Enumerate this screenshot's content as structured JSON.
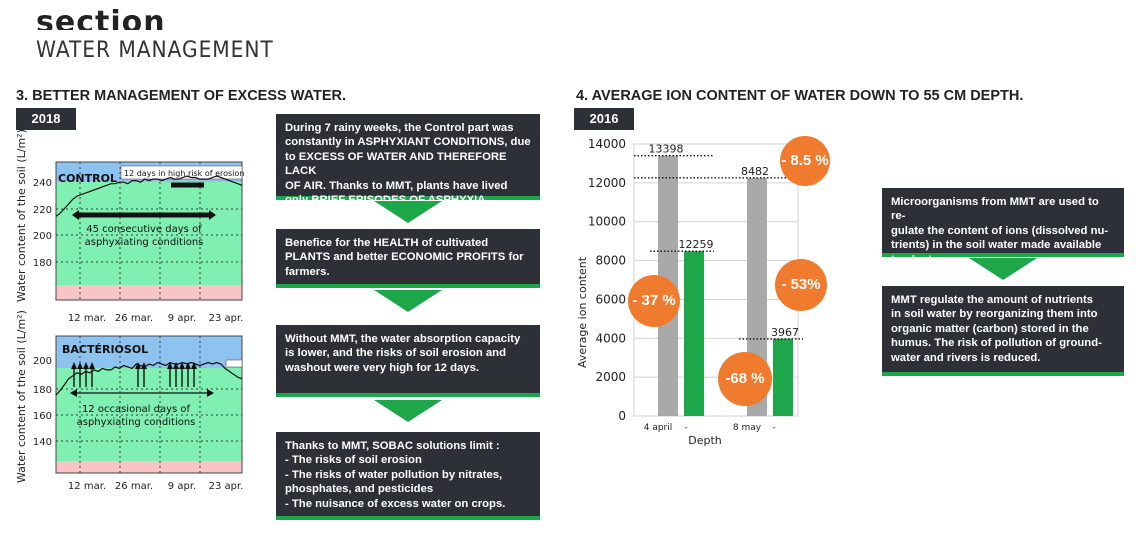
{
  "header": {
    "section_word": "section",
    "section_title": "WATER MANAGEMENT"
  },
  "left_panel": {
    "heading": "3. BETTER MANAGEMENT OF EXCESS WATER.",
    "year": "2018",
    "ylabel": "Water content of the soil (L/m²)",
    "x_ticks": [
      "12 mar.",
      "26 mar.",
      "9 apr.",
      "23 apr."
    ],
    "control": {
      "label": "CONTROL",
      "erosion_note": "12 days in high risk of erosion",
      "annotation_line1": "45 consecutive days of",
      "annotation_line2": "asphyxiating conditions",
      "y_ticks": [
        "240",
        "220",
        "200",
        "180"
      ]
    },
    "bacteriosol": {
      "label": "BACTÉRIOSOL",
      "annotation_line1": "12 occasional days of",
      "annotation_line2": "asphyxiating conditions",
      "y_ticks": [
        "200",
        "180",
        "160",
        "140"
      ]
    }
  },
  "middle_boxes": [
    {
      "lines": [
        "During 7 rainy weeks, the Control part was",
        "constantly in ASPHYXIANT CONDITIONS, due",
        "to EXCESS OF WATER AND THEREFORE LACK",
        "OF AIR. Thanks to MMT, plants have lived",
        "only BRIEF EPISODES OF ASPHYXIA."
      ]
    },
    {
      "lines": [
        "Benefice for the HEALTH of cultivated",
        "PLANTS and better ECONOMIC PROFITS for",
        "farmers."
      ]
    },
    {
      "lines": [
        "Without MMT, the water absorption capacity",
        "is lower, and the risks of soil erosion and",
        "washout were very high for 12 days."
      ]
    },
    {
      "lines": [
        "Thanks to MMT, SOBAC solutions limit :",
        "- The risks of soil erosion",
        "- The risks of water pollution by nitrates,",
        "phosphates, and pesticides",
        "- The nuisance of excess water on crops."
      ]
    }
  ],
  "right_panel": {
    "heading": "4. AVERAGE ION CONTENT OF WATER DOWN TO 55 CM DEPTH.",
    "year": "2016"
  },
  "right_boxes": [
    {
      "lines": [
        "Microorganisms from MMT are used to re-",
        "gulate the content of ions (dissolved nu-",
        "trients) in the soil water made available",
        "to plants."
      ]
    },
    {
      "lines": [
        "MMT regulate the amount of nutrients",
        "in soil water by reorganizing them into",
        "organic matter (carbon) stored in the",
        "humus. The risk of pollution of ground-",
        "water and rivers is reduced."
      ]
    }
  ],
  "badges": {
    "b1": "- 8.5 %",
    "b2": "- 37 %",
    "b3": "- 53%",
    "b4": "-68 %"
  },
  "chart_data": [
    {
      "type": "line",
      "title": "CONTROL",
      "ylabel": "Water content of the soil (L/m²)",
      "x_ticks": [
        "12 mar.",
        "26 mar.",
        "9 apr.",
        "23 apr."
      ],
      "y_ticks": [
        180,
        200,
        220,
        240
      ],
      "ylim": [
        165,
        254
      ],
      "series": [
        {
          "values": [
            219,
            221,
            224,
            227,
            230,
            232,
            233,
            234,
            235,
            236,
            237,
            238,
            239,
            240,
            240,
            241,
            241,
            240,
            242,
            242,
            241,
            243,
            242,
            243,
            243,
            242,
            243,
            244,
            243,
            243,
            244,
            245,
            244,
            244,
            243,
            243,
            243,
            244,
            245,
            244,
            243,
            242,
            241,
            240,
            239
          ]
        }
      ],
      "colors": {
        "zone_high": "#8ec3ef",
        "zone_mid": "#7ff0b2",
        "zone_low": "#f7c5c5",
        "line": "#111111"
      }
    },
    {
      "type": "line",
      "title": "BACTÉRIOSOL",
      "ylabel": "Water content of the soil (L/m²)",
      "x_ticks": [
        "12 mar.",
        "26 mar.",
        "9 apr.",
        "23 apr."
      ],
      "y_ticks": [
        140,
        160,
        180,
        200
      ],
      "ylim": [
        122,
        215
      ],
      "series": [
        {
          "values": [
            175,
            178,
            182,
            186,
            188,
            190,
            189,
            191,
            190,
            192,
            191,
            193,
            192,
            192,
            194,
            193,
            195,
            194,
            193,
            196,
            195,
            194,
            196,
            195,
            197,
            196,
            195,
            197,
            196,
            196,
            197,
            196,
            197,
            196,
            195,
            196,
            197,
            196,
            197,
            196,
            193,
            191,
            189,
            187,
            186
          ]
        }
      ],
      "colors": {
        "zone_high": "#8ec3ef",
        "zone_mid": "#7ff0b2",
        "zone_low": "#f7c5c5",
        "line": "#111111"
      }
    },
    {
      "type": "bar",
      "xlabel": "Depth",
      "ylabel": "Average ion content",
      "categories": [
        "4 april",
        "8 may"
      ],
      "y_ticks": [
        "0",
        "2000",
        "4000",
        "6000",
        "8000",
        "10000",
        "12000",
        "14000"
      ],
      "ylim": [
        0,
        14000
      ],
      "series": [
        {
          "values": [
            13398,
            12259
          ],
          "color": "#a9a9a9"
        },
        {
          "values": [
            8482,
            3967
          ],
          "color": "#1ea64a"
        }
      ],
      "value_labels": [
        "13398",
        "12259",
        "8482",
        "3967"
      ]
    }
  ]
}
